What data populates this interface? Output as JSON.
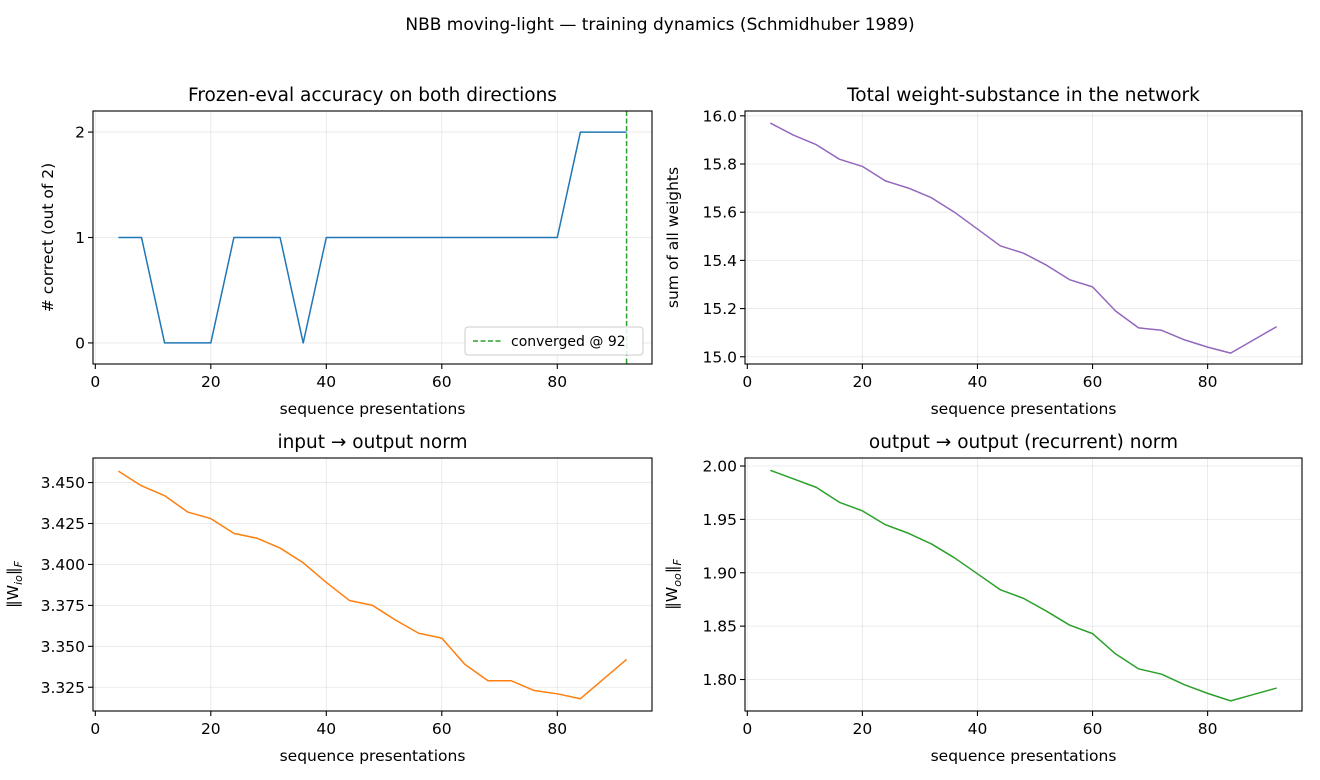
{
  "suptitle": "NBB moving-light — training dynamics  (Schmidhuber 1989)",
  "chart_data": [
    {
      "id": "acc",
      "type": "line",
      "title": "Frozen-eval accuracy on both directions",
      "xlabel": "sequence presentations",
      "ylabel": "# correct (out of 2)",
      "xlim": [
        -0.4,
        96.4
      ],
      "ylim": [
        -0.2,
        2.2
      ],
      "xticks": [
        0,
        20,
        40,
        60,
        80
      ],
      "yticks": [
        0,
        1,
        2
      ],
      "ytick_labels": [
        "0",
        "1",
        "2"
      ],
      "grid": true,
      "series": [
        {
          "color": "#1f77b4",
          "x": [
            4,
            8,
            12,
            16,
            20,
            24,
            28,
            32,
            36,
            40,
            44,
            48,
            52,
            56,
            60,
            64,
            68,
            72,
            76,
            80,
            84,
            88,
            92
          ],
          "y": [
            1,
            1,
            0,
            0,
            0,
            1,
            1,
            1,
            0,
            1,
            1,
            1,
            1,
            1,
            1,
            1,
            1,
            1,
            1,
            1,
            2,
            2,
            2
          ]
        }
      ],
      "vline": {
        "x": 92,
        "color": "#2ca02c",
        "label": "converged @ 92"
      },
      "legend": "lower right"
    },
    {
      "id": "total",
      "type": "line",
      "title": "Total weight-substance in the network",
      "xlabel": "sequence presentations",
      "ylabel": "sum of all weights",
      "xlim": [
        -0.4,
        96.4
      ],
      "ylim": [
        14.97,
        16.02
      ],
      "xticks": [
        0,
        20,
        40,
        60,
        80
      ],
      "yticks": [
        15.0,
        15.2,
        15.4,
        15.6,
        15.8,
        16.0
      ],
      "ytick_labels": [
        "15.0",
        "15.2",
        "15.4",
        "15.6",
        "15.8",
        "16.0"
      ],
      "grid": true,
      "series": [
        {
          "color": "#9467bd",
          "x": [
            4,
            8,
            12,
            16,
            20,
            24,
            28,
            32,
            36,
            40,
            44,
            48,
            52,
            56,
            60,
            64,
            68,
            72,
            76,
            80,
            84,
            88,
            92
          ],
          "y": [
            15.97,
            15.92,
            15.88,
            15.82,
            15.79,
            15.73,
            15.7,
            15.66,
            15.6,
            15.53,
            15.46,
            15.43,
            15.38,
            15.32,
            15.29,
            15.19,
            15.12,
            15.11,
            15.07,
            15.04,
            15.015,
            15.07,
            15.125
          ]
        }
      ]
    },
    {
      "id": "io",
      "type": "line",
      "title": "input → output norm",
      "xlabel": "sequence presentations",
      "ylabel_main": "‖W",
      "ylabel_sub": "io",
      "ylabel_end": "‖",
      "ylabel_endsub": "F",
      "xlim": [
        -0.4,
        96.4
      ],
      "ylim": [
        3.3105,
        3.465
      ],
      "xticks": [
        0,
        20,
        40,
        60,
        80
      ],
      "yticks": [
        3.325,
        3.35,
        3.375,
        3.4,
        3.425,
        3.45
      ],
      "ytick_labels": [
        "3.325",
        "3.350",
        "3.375",
        "3.400",
        "3.425",
        "3.450"
      ],
      "grid": true,
      "series": [
        {
          "color": "#ff7f0e",
          "x": [
            4,
            8,
            12,
            16,
            20,
            24,
            28,
            32,
            36,
            40,
            44,
            48,
            52,
            56,
            60,
            64,
            68,
            72,
            76,
            80,
            84,
            88,
            92
          ],
          "y": [
            3.457,
            3.448,
            3.442,
            3.432,
            3.428,
            3.419,
            3.416,
            3.41,
            3.401,
            3.389,
            3.378,
            3.375,
            3.366,
            3.358,
            3.355,
            3.339,
            3.329,
            3.329,
            3.323,
            3.321,
            3.318,
            3.33,
            3.342
          ]
        }
      ]
    },
    {
      "id": "oo",
      "type": "line",
      "title": "output → output (recurrent) norm",
      "xlabel": "sequence presentations",
      "ylabel_main": "‖W",
      "ylabel_sub": "oo",
      "ylabel_end": "‖",
      "ylabel_endsub": "F",
      "xlim": [
        -0.4,
        96.4
      ],
      "ylim": [
        1.7705,
        2.0075
      ],
      "xticks": [
        0,
        20,
        40,
        60,
        80
      ],
      "yticks": [
        1.8,
        1.85,
        1.9,
        1.95,
        2.0
      ],
      "ytick_labels": [
        "1.80",
        "1.85",
        "1.90",
        "1.95",
        "2.00"
      ],
      "grid": true,
      "series": [
        {
          "color": "#2ca02c",
          "x": [
            4,
            8,
            12,
            16,
            20,
            24,
            28,
            32,
            36,
            40,
            44,
            48,
            52,
            56,
            60,
            64,
            68,
            72,
            76,
            80,
            84,
            88,
            92
          ],
          "y": [
            1.996,
            1.988,
            1.98,
            1.966,
            1.958,
            1.945,
            1.937,
            1.927,
            1.914,
            1.899,
            1.884,
            1.876,
            1.864,
            1.851,
            1.843,
            1.824,
            1.81,
            1.805,
            1.795,
            1.787,
            1.78,
            1.786,
            1.792
          ]
        }
      ]
    }
  ]
}
